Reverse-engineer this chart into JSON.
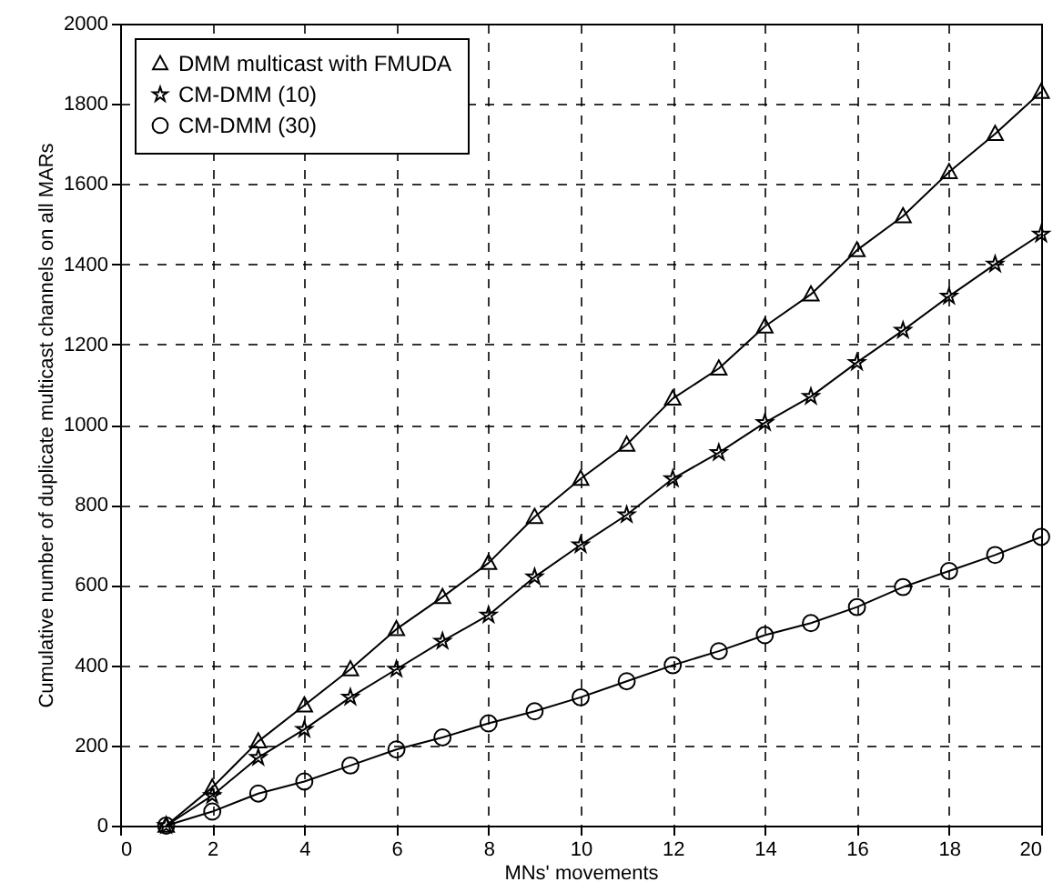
{
  "chart_data": {
    "type": "line",
    "xlabel": "MNs' movements",
    "ylabel": "Cumulative number of duplicate multicast channels on all MARs",
    "x": [
      1,
      2,
      3,
      4,
      5,
      6,
      7,
      8,
      9,
      10,
      11,
      12,
      13,
      14,
      15,
      16,
      17,
      18,
      19,
      20
    ],
    "series": [
      {
        "name": "DMM multicast with FMUDA",
        "color": "#000000",
        "marker": "triangle",
        "values": [
          0,
          95,
          210,
          300,
          390,
          490,
          570,
          655,
          770,
          865,
          950,
          1065,
          1140,
          1245,
          1325,
          1435,
          1520,
          1630,
          1725,
          1830
        ]
      },
      {
        "name": "CM-DMM (10)",
        "color": "#000000",
        "marker": "star",
        "values": [
          0,
          75,
          170,
          240,
          320,
          390,
          460,
          525,
          620,
          700,
          775,
          865,
          930,
          1005,
          1070,
          1155,
          1235,
          1320,
          1400,
          1475
        ]
      },
      {
        "name": "CM-DMM (30)",
        "color": "#000000",
        "marker": "circle",
        "values": [
          0,
          35,
          80,
          110,
          150,
          190,
          220,
          255,
          285,
          320,
          360,
          400,
          435,
          475,
          505,
          545,
          595,
          635,
          675,
          720
        ]
      }
    ],
    "xlim": [
      0,
      20
    ],
    "xticks": [
      0,
      2,
      4,
      6,
      8,
      10,
      12,
      14,
      16,
      18,
      20
    ],
    "ylim": [
      0,
      2000
    ],
    "yticks": [
      0,
      200,
      400,
      600,
      800,
      1000,
      1200,
      1400,
      1600,
      1800,
      2000
    ],
    "grid": true,
    "legend": "top left",
    "line_style": "solid"
  }
}
